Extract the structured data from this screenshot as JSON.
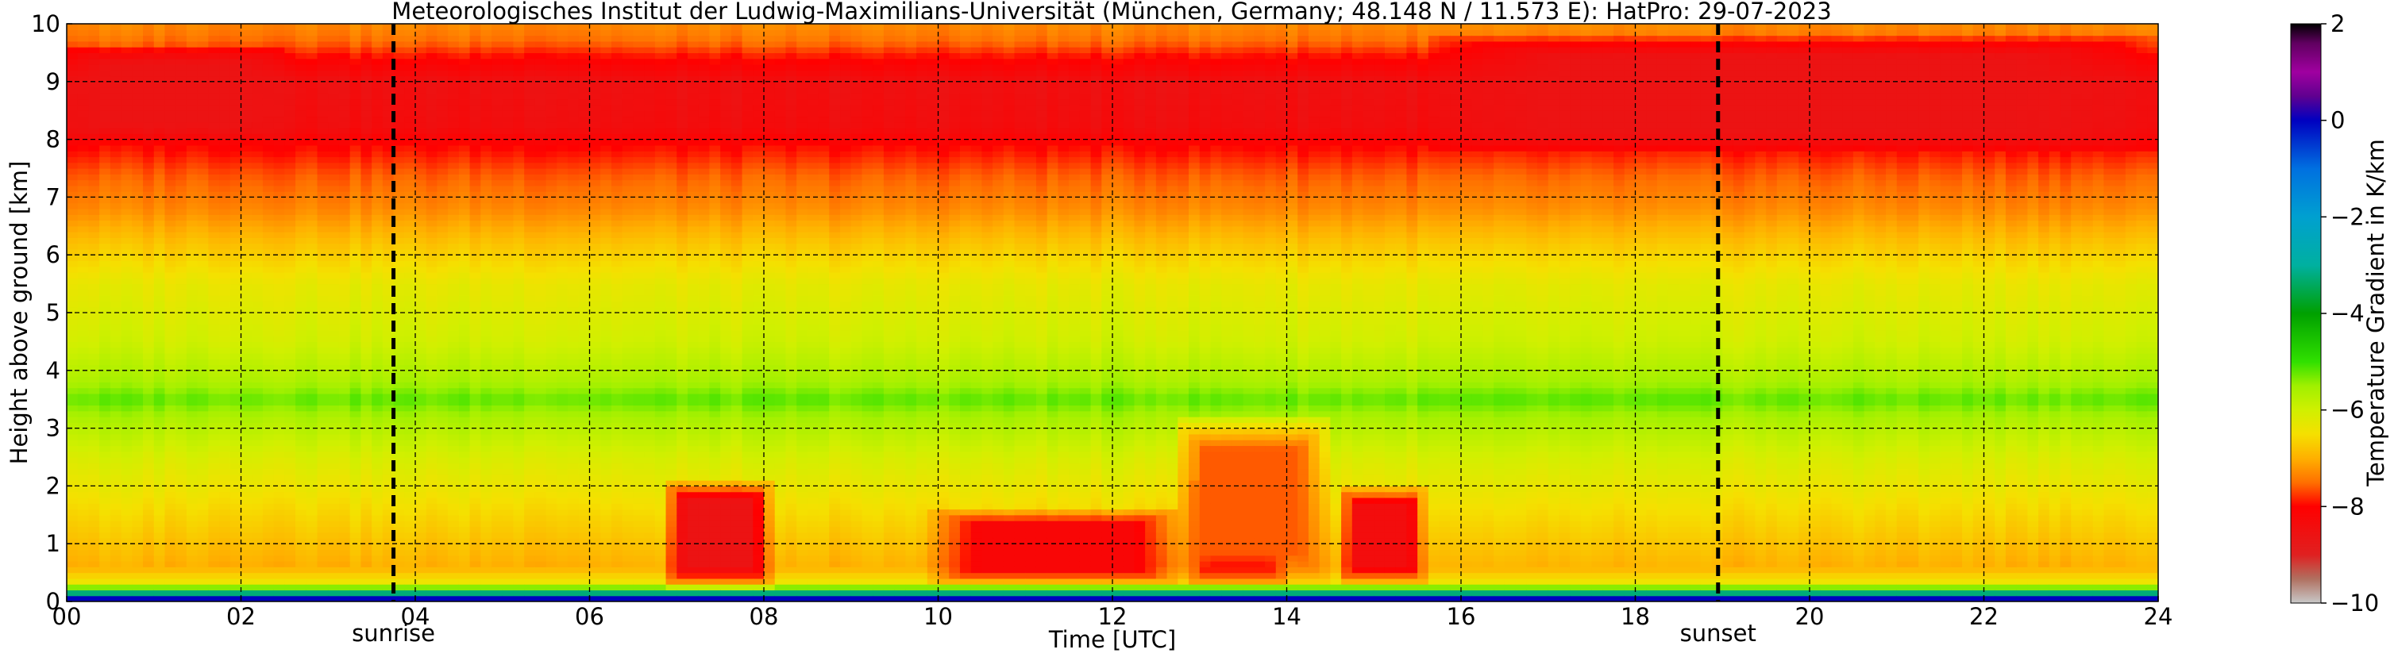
{
  "chart_data": {
    "type": "heatmap",
    "title": "Meteorologisches Institut der Ludwig-Maximilians-Universität (München, Germany; 48.148 N / 11.573 E):    HatPro: 29-07-2023",
    "xlabel": "Time [UTC]",
    "ylabel": "Height above ground [km]",
    "xlim": [
      0,
      24
    ],
    "ylim": [
      0,
      10
    ],
    "x_ticks": [
      0,
      2,
      4,
      6,
      8,
      10,
      12,
      14,
      16,
      18,
      20,
      22,
      24
    ],
    "x_tick_labels": [
      "00",
      "02",
      "04",
      "06",
      "08",
      "10",
      "12",
      "14",
      "16",
      "18",
      "20",
      "22",
      "24"
    ],
    "y_ticks": [
      0,
      1,
      2,
      3,
      4,
      5,
      6,
      7,
      8,
      9,
      10
    ],
    "y_tick_labels": [
      "0",
      "1",
      "2",
      "3",
      "4",
      "5",
      "6",
      "7",
      "8",
      "9",
      "10"
    ],
    "grid": true,
    "markers": [
      {
        "label": "sunrise",
        "time": 3.75
      },
      {
        "label": "sunset",
        "time": 18.95
      }
    ],
    "colorbar": {
      "label": "Temperature Gradient in K/km",
      "range": [
        -10,
        2
      ],
      "ticks": [
        2,
        0,
        -2,
        -4,
        -6,
        -8,
        -10
      ],
      "tick_labels": [
        "2",
        "0",
        "−2",
        "−4",
        "−6",
        "−8",
        "−10"
      ],
      "colormap": [
        {
          "v": -10,
          "c": "#c8c8c8"
        },
        {
          "v": -9.5,
          "c": "#b07060"
        },
        {
          "v": -9.0,
          "c": "#e02020"
        },
        {
          "v": -8.0,
          "c": "#ff0000"
        },
        {
          "v": -7.5,
          "c": "#ff7000"
        },
        {
          "v": -7.0,
          "c": "#ffb000"
        },
        {
          "v": -6.5,
          "c": "#f5e000"
        },
        {
          "v": -6.0,
          "c": "#d0f000"
        },
        {
          "v": -5.5,
          "c": "#a0f000"
        },
        {
          "v": -5.0,
          "c": "#30e000"
        },
        {
          "v": -4.0,
          "c": "#00a000"
        },
        {
          "v": -3.0,
          "c": "#00b0a0"
        },
        {
          "v": -2.0,
          "c": "#00a0d0"
        },
        {
          "v": -1.0,
          "c": "#0070e0"
        },
        {
          "v": 0.0,
          "c": "#0000c0"
        },
        {
          "v": 0.5,
          "c": "#600090"
        },
        {
          "v": 1.0,
          "c": "#a000a0"
        },
        {
          "v": 1.6,
          "c": "#600060"
        },
        {
          "v": 2.0,
          "c": "#000000"
        }
      ]
    },
    "height_profile": [
      {
        "h": 0.0,
        "v": -9.8
      },
      {
        "h": 0.05,
        "v": 0.0
      },
      {
        "h": 0.12,
        "v": -2.5
      },
      {
        "h": 0.2,
        "v": -4.5
      },
      {
        "h": 0.3,
        "v": -6.3
      },
      {
        "h": 0.6,
        "v": -7.0
      },
      {
        "h": 1.5,
        "v": -6.6
      },
      {
        "h": 2.5,
        "v": -6.1
      },
      {
        "h": 3.2,
        "v": -5.6
      },
      {
        "h": 3.5,
        "v": -5.2
      },
      {
        "h": 3.8,
        "v": -5.6
      },
      {
        "h": 4.5,
        "v": -6.0
      },
      {
        "h": 5.5,
        "v": -6.3
      },
      {
        "h": 6.2,
        "v": -6.8
      },
      {
        "h": 6.8,
        "v": -7.3
      },
      {
        "h": 7.4,
        "v": -7.6
      },
      {
        "h": 7.9,
        "v": -8.0
      },
      {
        "h": 8.2,
        "v": -8.4
      },
      {
        "h": 9.0,
        "v": -8.5
      },
      {
        "h": 9.4,
        "v": -8.0
      },
      {
        "h": 9.7,
        "v": -7.5
      },
      {
        "h": 10.0,
        "v": -7.3
      }
    ],
    "features": [
      {
        "t0": 6.85,
        "t1": 8.1,
        "h0": 0.25,
        "h1": 2.1,
        "v": -8.6
      },
      {
        "t0": 9.9,
        "t1": 12.8,
        "h0": 0.3,
        "h1": 1.6,
        "v": -8.2
      },
      {
        "t0": 12.9,
        "t1": 14.0,
        "h0": 0.3,
        "h1": 2.1,
        "v": -8.6
      },
      {
        "t0": 12.7,
        "t1": 14.5,
        "h0": 0.3,
        "h1": 3.2,
        "v": -7.6
      },
      {
        "t0": 14.6,
        "t1": 15.6,
        "h0": 0.3,
        "h1": 2.0,
        "v": -8.4
      },
      {
        "t0": 15.6,
        "t1": 24.0,
        "h0": 7.8,
        "h1": 9.8,
        "v": -8.6
      },
      {
        "t0": 0.0,
        "t1": 2.5,
        "h0": 8.0,
        "h1": 9.6,
        "v": -8.6
      }
    ]
  }
}
